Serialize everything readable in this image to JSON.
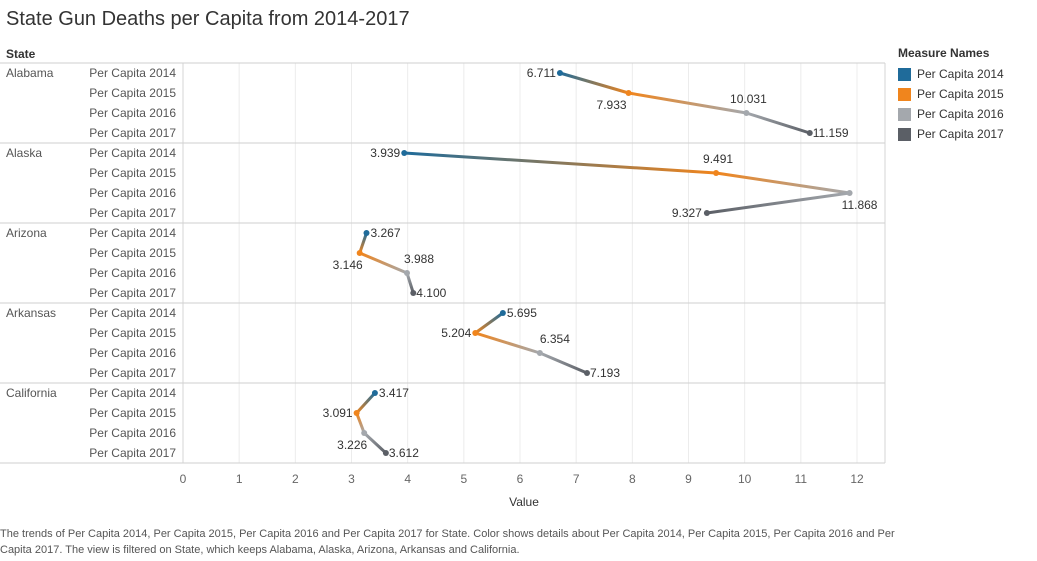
{
  "title": "State Gun Deaths per Capita from 2014-2017",
  "caption": "The trends of Per Capita 2014, Per Capita 2015, Per Capita 2016 and Per Capita 2017 for State.  Color shows details about Per Capita 2014, Per Capita 2015, Per Capita 2016 and Per Capita 2017. The view is filtered on State, which keeps Alabama, Alaska, Arizona, Arkansas and California.",
  "legend": {
    "title": "Measure Names",
    "items": [
      {
        "label": "Per Capita 2014",
        "color": "#1f6b9a"
      },
      {
        "label": "Per Capita 2015",
        "color": "#f0851d"
      },
      {
        "label": "Per Capita 2016",
        "color": "#a4a8ad"
      },
      {
        "label": "Per Capita 2017",
        "color": "#5b5f66"
      }
    ]
  },
  "chart_data": {
    "type": "line",
    "row_header": "State",
    "xlabel": "Value",
    "xlim": [
      0,
      12
    ],
    "xticks": [
      0,
      1,
      2,
      3,
      4,
      5,
      6,
      7,
      8,
      9,
      10,
      11,
      12
    ],
    "measures": [
      "Per Capita 2014",
      "Per Capita 2015",
      "Per Capita 2016",
      "Per Capita 2017"
    ],
    "colors": [
      "#1f6b9a",
      "#f0851d",
      "#a4a8ad",
      "#5b5f66"
    ],
    "states": [
      {
        "name": "Alabama",
        "values": [
          6.711,
          7.933,
          10.031,
          11.159
        ]
      },
      {
        "name": "Alaska",
        "values": [
          3.939,
          9.491,
          11.868,
          9.327
        ]
      },
      {
        "name": "Arizona",
        "values": [
          3.267,
          3.146,
          3.988,
          4.1
        ]
      },
      {
        "name": "Arkansas",
        "values": [
          5.695,
          5.204,
          6.354,
          7.193
        ]
      },
      {
        "name": "California",
        "values": [
          3.417,
          3.091,
          3.226,
          3.612
        ]
      }
    ],
    "value_labels": [
      [
        "6.711",
        "7.933",
        "10.031",
        "11.159"
      ],
      [
        "3.939",
        "9.491",
        "11.868",
        "9.327"
      ],
      [
        "3.267",
        "3.146",
        "3.988",
        "4.100"
      ],
      [
        "5.695",
        "5.204",
        "6.354",
        "7.193"
      ],
      [
        "3.417",
        "3.091",
        "3.226",
        "3.612"
      ]
    ]
  }
}
